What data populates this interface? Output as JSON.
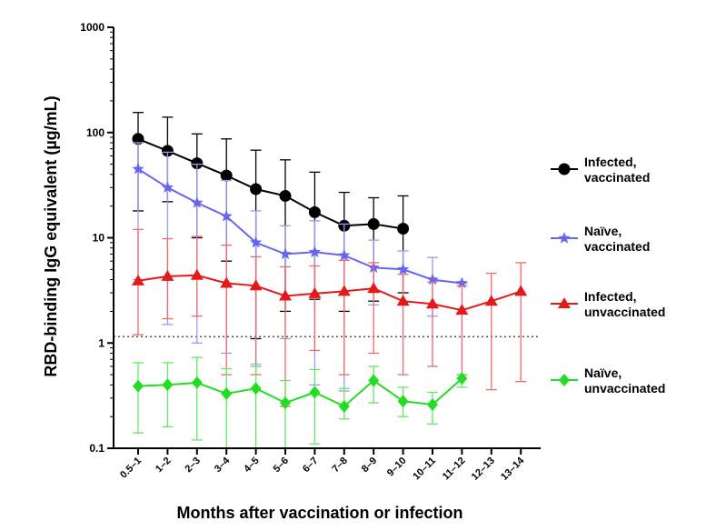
{
  "chart_data": {
    "type": "line",
    "xlabel": "Months after vaccination or infection",
    "ylabel": "RBD-binding IgG equivalent (µg/mL)",
    "yscale": "log",
    "ylim": [
      0.1,
      1000
    ],
    "yticks": [
      "0.1",
      "1",
      "10",
      "100",
      "1000"
    ],
    "categories": [
      "0.5–1",
      "1–2",
      "2–3",
      "3–4",
      "4–5",
      "5–6",
      "6–7",
      "7–8",
      "8–9",
      "9–10",
      "10–11",
      "11–12",
      "12–13",
      "13–14"
    ],
    "threshold": 1.15,
    "legend_position": "right",
    "series": [
      {
        "name_lines": [
          "Infected,",
          "vaccinated"
        ],
        "color": "#000000",
        "err_color": "#000000",
        "marker": "circle",
        "points": [
          {
            "i": 0,
            "y": 87,
            "lo": 18,
            "hi": 155
          },
          {
            "i": 1,
            "y": 67,
            "lo": 22,
            "hi": 140
          },
          {
            "i": 2,
            "y": 51,
            "lo": 10,
            "hi": 97
          },
          {
            "i": 3,
            "y": 39,
            "lo": 6,
            "hi": 87
          },
          {
            "i": 4,
            "y": 29,
            "lo": 1.1,
            "hi": 68
          },
          {
            "i": 5,
            "y": 25,
            "lo": 2,
            "hi": 55
          },
          {
            "i": 6,
            "y": 17.5,
            "lo": 2.6,
            "hi": 42
          },
          {
            "i": 7,
            "y": 13,
            "lo": 2,
            "hi": 27
          },
          {
            "i": 8,
            "y": 13.5,
            "lo": 2.5,
            "hi": 24
          },
          {
            "i": 9,
            "y": 12.2,
            "lo": 3,
            "hi": 25
          }
        ]
      },
      {
        "name_lines": [
          "Naïve,",
          "vaccinated"
        ],
        "color": "#6666ee",
        "err_color": "#9a9af2",
        "marker": "star",
        "points": [
          {
            "i": 0,
            "y": 45,
            "lo": 4,
            "hi": 80
          },
          {
            "i": 1,
            "y": 30,
            "lo": 1.5,
            "hi": 65
          },
          {
            "i": 2,
            "y": 21.5,
            "lo": 1,
            "hi": 50
          },
          {
            "i": 3,
            "y": 16,
            "lo": 0.8,
            "hi": 35
          },
          {
            "i": 4,
            "y": 9,
            "lo": 0.6,
            "hi": 18
          },
          {
            "i": 5,
            "y": 7,
            "lo": 1.1,
            "hi": 13
          },
          {
            "i": 6,
            "y": 7.3,
            "lo": 0.4,
            "hi": 14.5
          },
          {
            "i": 7,
            "y": 6.8,
            "lo": 0.35,
            "hi": 13.5
          },
          {
            "i": 8,
            "y": 5.2,
            "lo": 2.3,
            "hi": 9.5
          },
          {
            "i": 9,
            "y": 5,
            "lo": 2.3,
            "hi": 7.5
          },
          {
            "i": 10,
            "y": 4,
            "lo": 1.8,
            "hi": 6.5
          },
          {
            "i": 11,
            "y": 3.7,
            "lo": 3.7,
            "hi": 3.7
          }
        ]
      },
      {
        "name_lines": [
          "Infected,",
          "unvaccinated"
        ],
        "color": "#e41a1a",
        "err_color": "#ee6b6b",
        "marker": "triangle",
        "points": [
          {
            "i": 0,
            "y": 3.9,
            "lo": 1.2,
            "hi": 12
          },
          {
            "i": 1,
            "y": 4.3,
            "lo": 1.7,
            "hi": 9.8
          },
          {
            "i": 2,
            "y": 4.4,
            "lo": 1.8,
            "hi": 10.3
          },
          {
            "i": 3,
            "y": 3.7,
            "lo": 0.5,
            "hi": 8.5
          },
          {
            "i": 4,
            "y": 3.5,
            "lo": 0.5,
            "hi": 6.6
          },
          {
            "i": 5,
            "y": 2.8,
            "lo": 0.25,
            "hi": 5.3
          },
          {
            "i": 6,
            "y": 2.95,
            "lo": 0.85,
            "hi": 5.4
          },
          {
            "i": 7,
            "y": 3.1,
            "lo": 0.5,
            "hi": 6.1
          },
          {
            "i": 8,
            "y": 3.3,
            "lo": 0.8,
            "hi": 5.8
          },
          {
            "i": 9,
            "y": 2.5,
            "lo": 0.5,
            "hi": 4.5
          },
          {
            "i": 10,
            "y": 2.35,
            "lo": 0.6,
            "hi": 3.8
          },
          {
            "i": 11,
            "y": 2.05,
            "lo": 0.5,
            "hi": 3.5
          },
          {
            "i": 12,
            "y": 2.5,
            "lo": 0.36,
            "hi": 4.6
          },
          {
            "i": 13,
            "y": 3.1,
            "lo": 0.43,
            "hi": 5.8
          }
        ]
      },
      {
        "name_lines": [
          "Naïve,",
          "unvaccinated"
        ],
        "color": "#22dd22",
        "err_color": "#66e666",
        "marker": "diamond",
        "points": [
          {
            "i": 0,
            "y": 0.39,
            "lo": 0.14,
            "hi": 0.65
          },
          {
            "i": 1,
            "y": 0.4,
            "lo": 0.16,
            "hi": 0.65
          },
          {
            "i": 2,
            "y": 0.42,
            "lo": 0.12,
            "hi": 0.73
          },
          {
            "i": 3,
            "y": 0.33,
            "lo": 0.1,
            "hi": 0.57
          },
          {
            "i": 4,
            "y": 0.37,
            "lo": 0.1,
            "hi": 0.63
          },
          {
            "i": 5,
            "y": 0.27,
            "lo": 0.1,
            "hi": 0.44
          },
          {
            "i": 6,
            "y": 0.34,
            "lo": 0.11,
            "hi": 0.56
          },
          {
            "i": 7,
            "y": 0.25,
            "lo": 0.19,
            "hi": 0.37
          },
          {
            "i": 8,
            "y": 0.44,
            "lo": 0.27,
            "hi": 0.6
          },
          {
            "i": 9,
            "y": 0.28,
            "lo": 0.2,
            "hi": 0.38
          },
          {
            "i": 10,
            "y": 0.26,
            "lo": 0.17,
            "hi": 0.34
          },
          {
            "i": 11,
            "y": 0.46,
            "lo": 0.38,
            "hi": 0.5
          }
        ]
      }
    ]
  }
}
